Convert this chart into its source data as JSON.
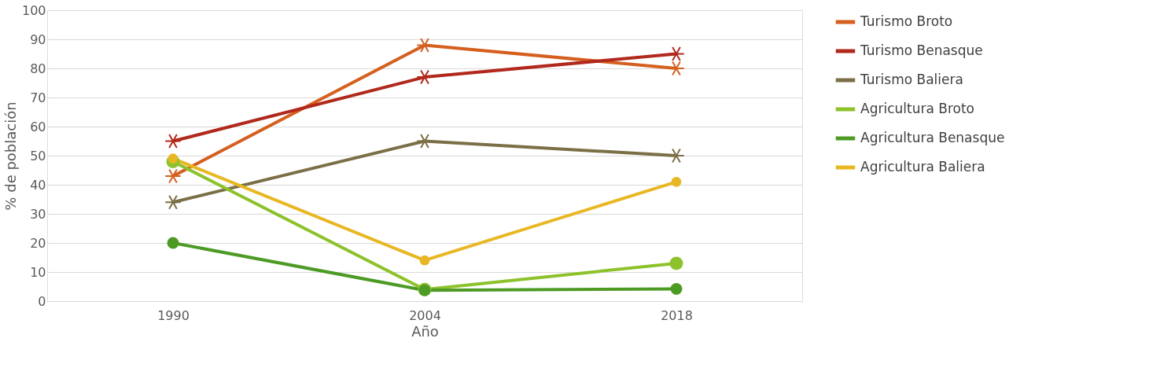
{
  "chart_data": {
    "type": "line",
    "xlabel": "Año",
    "ylabel": "% de población",
    "categories": [
      "1990",
      "2004",
      "2018"
    ],
    "ylim": [
      0,
      100
    ],
    "yticks": [
      0,
      10,
      20,
      30,
      40,
      50,
      60,
      70,
      80,
      90,
      100
    ],
    "grid": "y",
    "legend": "right",
    "series": [
      {
        "name": "Turismo Broto",
        "color": "#d55f1f",
        "marker": "cross",
        "values": [
          43,
          88,
          80
        ]
      },
      {
        "name": "Turismo Benasque",
        "color": "#b1281c",
        "marker": "cross",
        "values": [
          55,
          77,
          85
        ]
      },
      {
        "name": "Turismo Baliera",
        "color": "#7a6f46",
        "marker": "cross",
        "values": [
          34,
          55,
          50
        ]
      },
      {
        "name": "Agricultura Broto",
        "color": "#8dc22c",
        "marker": "circle",
        "values": [
          48,
          4,
          13
        ]
      },
      {
        "name": "Agricultura Benasque",
        "color": "#4d9a24",
        "marker": "circle",
        "values": [
          20,
          3.7,
          4.2
        ]
      },
      {
        "name": "Agricultura Baliera",
        "color": "#e8b724",
        "marker": "circle",
        "values": [
          49,
          14,
          41
        ]
      }
    ]
  }
}
